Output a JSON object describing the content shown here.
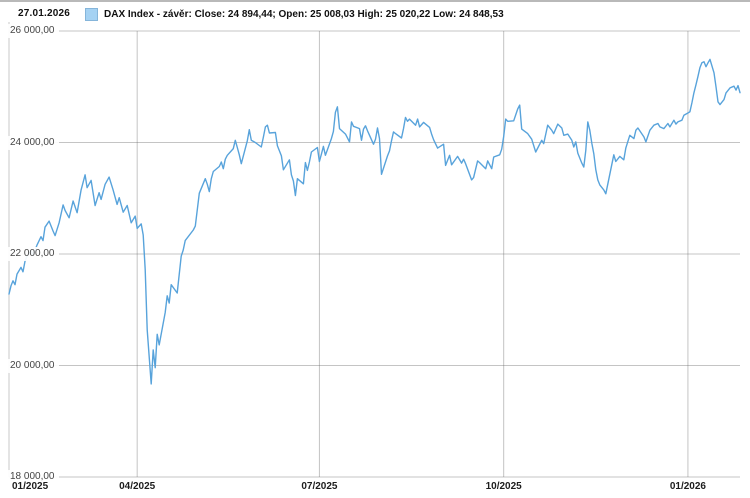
{
  "header": {
    "date_label": "27.01.2026",
    "legend": {
      "swatch_color": "#a5d2f3",
      "label": "DAX Index - závěr: Close: 24 894,44; Open: 25 008,03 High: 25 020,22 Low: 24 848,53"
    }
  },
  "chart_data": {
    "type": "area",
    "title": "DAX Index - závěr",
    "legend_position": "top",
    "grid": true,
    "xlabel": "",
    "ylabel": "",
    "x_unit": "days since 2025-01-27",
    "xlim": [
      0,
      365
    ],
    "ylim": [
      18000,
      26000
    ],
    "last_quote": {
      "date": "27.01.2026",
      "close": "24 894,44",
      "open": "25 008,03",
      "high": "25 020,22",
      "low": "24 848,53"
    },
    "y_ticks": [
      {
        "label": "26 000,00",
        "value": 26000
      },
      {
        "label": "24 000,00",
        "value": 24000
      },
      {
        "label": "22 000,00",
        "value": 22000
      },
      {
        "label": "20 000,00",
        "value": 20000
      },
      {
        "label": "18 000,00",
        "value": 18000
      }
    ],
    "x_ticks": [
      {
        "label": "01/2025",
        "day": 0,
        "align": "left",
        "gridline": false
      },
      {
        "label": "04/2025",
        "day": 64,
        "gridline": true
      },
      {
        "label": "07/2025",
        "day": 155,
        "gridline": true
      },
      {
        "label": "10/2025",
        "day": 247,
        "gridline": true
      },
      {
        "label": "01/2026",
        "day": 339,
        "gridline": true
      }
    ],
    "colors": {
      "fill": "#9ccef2",
      "line": "#58a3db",
      "grid": "rgba(100,100,100,0.38)",
      "axis": "#c9c9c9"
    },
    "series": [
      {
        "name": "DAX Index",
        "points": [
          [
            0,
            21280
          ],
          [
            1,
            21430
          ],
          [
            2,
            21520
          ],
          [
            3,
            21450
          ],
          [
            4,
            21640
          ],
          [
            6,
            21760
          ],
          [
            7,
            21680
          ],
          [
            8,
            21870
          ],
          [
            9,
            21960
          ],
          [
            11,
            22060
          ],
          [
            12,
            21980
          ],
          [
            14,
            22160
          ],
          [
            16,
            22310
          ],
          [
            17,
            22240
          ],
          [
            18,
            22480
          ],
          [
            20,
            22590
          ],
          [
            22,
            22410
          ],
          [
            23,
            22330
          ],
          [
            25,
            22560
          ],
          [
            27,
            22880
          ],
          [
            28,
            22780
          ],
          [
            30,
            22650
          ],
          [
            32,
            22950
          ],
          [
            34,
            22740
          ],
          [
            36,
            23150
          ],
          [
            38,
            23420
          ],
          [
            39,
            23190
          ],
          [
            41,
            23320
          ],
          [
            43,
            22870
          ],
          [
            45,
            23100
          ],
          [
            46,
            22980
          ],
          [
            48,
            23250
          ],
          [
            50,
            23380
          ],
          [
            52,
            23150
          ],
          [
            54,
            22890
          ],
          [
            55,
            23010
          ],
          [
            57,
            22750
          ],
          [
            59,
            22870
          ],
          [
            61,
            22560
          ],
          [
            63,
            22680
          ],
          [
            64,
            22460
          ],
          [
            66,
            22540
          ],
          [
            67,
            22340
          ],
          [
            68,
            21720
          ],
          [
            69,
            20640
          ],
          [
            71,
            19670
          ],
          [
            72,
            20280
          ],
          [
            73,
            19960
          ],
          [
            74,
            20560
          ],
          [
            75,
            20370
          ],
          [
            78,
            20950
          ],
          [
            79,
            21250
          ],
          [
            80,
            21120
          ],
          [
            81,
            21450
          ],
          [
            84,
            21300
          ],
          [
            86,
            21960
          ],
          [
            87,
            22070
          ],
          [
            88,
            22240
          ],
          [
            92,
            22430
          ],
          [
            93,
            22500
          ],
          [
            95,
            23090
          ],
          [
            98,
            23350
          ],
          [
            99,
            23250
          ],
          [
            100,
            23120
          ],
          [
            101,
            23350
          ],
          [
            102,
            23480
          ],
          [
            105,
            23570
          ],
          [
            106,
            23650
          ],
          [
            107,
            23530
          ],
          [
            108,
            23700
          ],
          [
            109,
            23770
          ],
          [
            112,
            23890
          ],
          [
            113,
            24040
          ],
          [
            114,
            23910
          ],
          [
            115,
            23780
          ],
          [
            116,
            23620
          ],
          [
            119,
            24030
          ],
          [
            120,
            24230
          ],
          [
            121,
            24040
          ],
          [
            123,
            24000
          ],
          [
            126,
            23920
          ],
          [
            127,
            24090
          ],
          [
            128,
            24280
          ],
          [
            129,
            24310
          ],
          [
            130,
            24170
          ],
          [
            133,
            24180
          ],
          [
            134,
            23940
          ],
          [
            136,
            23760
          ],
          [
            137,
            23510
          ],
          [
            140,
            23690
          ],
          [
            141,
            23420
          ],
          [
            142,
            23310
          ],
          [
            143,
            23050
          ],
          [
            144,
            23350
          ],
          [
            147,
            23260
          ],
          [
            148,
            23640
          ],
          [
            149,
            23500
          ],
          [
            150,
            23650
          ],
          [
            151,
            23830
          ],
          [
            154,
            23910
          ],
          [
            155,
            23660
          ],
          [
            156,
            23790
          ],
          [
            157,
            23930
          ],
          [
            158,
            23770
          ],
          [
            161,
            24070
          ],
          [
            162,
            24200
          ],
          [
            163,
            24540
          ],
          [
            164,
            24640
          ],
          [
            165,
            24250
          ],
          [
            168,
            24150
          ],
          [
            170,
            24010
          ],
          [
            171,
            24370
          ],
          [
            172,
            24290
          ],
          [
            175,
            24250
          ],
          [
            176,
            24040
          ],
          [
            177,
            24240
          ],
          [
            178,
            24300
          ],
          [
            179,
            24210
          ],
          [
            182,
            23970
          ],
          [
            183,
            24060
          ],
          [
            184,
            24260
          ],
          [
            185,
            24070
          ],
          [
            186,
            23430
          ],
          [
            189,
            23760
          ],
          [
            190,
            23850
          ],
          [
            191,
            24030
          ],
          [
            192,
            24190
          ],
          [
            193,
            24160
          ],
          [
            196,
            24080
          ],
          [
            197,
            24250
          ],
          [
            198,
            24450
          ],
          [
            199,
            24380
          ],
          [
            200,
            24420
          ],
          [
            203,
            24310
          ],
          [
            204,
            24420
          ],
          [
            205,
            24280
          ],
          [
            207,
            24360
          ],
          [
            210,
            24270
          ],
          [
            211,
            24150
          ],
          [
            212,
            24050
          ],
          [
            214,
            23900
          ],
          [
            217,
            23970
          ],
          [
            218,
            23590
          ],
          [
            219,
            23680
          ],
          [
            220,
            23770
          ],
          [
            221,
            23600
          ],
          [
            224,
            23750
          ],
          [
            226,
            23630
          ],
          [
            227,
            23700
          ],
          [
            228,
            23620
          ],
          [
            231,
            23330
          ],
          [
            232,
            23370
          ],
          [
            234,
            23670
          ],
          [
            235,
            23640
          ],
          [
            238,
            23530
          ],
          [
            239,
            23670
          ],
          [
            241,
            23530
          ],
          [
            242,
            23740
          ],
          [
            245,
            23780
          ],
          [
            246,
            23880
          ],
          [
            247,
            24110
          ],
          [
            248,
            24420
          ],
          [
            249,
            24380
          ],
          [
            252,
            24390
          ],
          [
            254,
            24600
          ],
          [
            255,
            24670
          ],
          [
            256,
            24240
          ],
          [
            259,
            24160
          ],
          [
            261,
            24060
          ],
          [
            263,
            23830
          ],
          [
            266,
            24040
          ],
          [
            267,
            23980
          ],
          [
            269,
            24310
          ],
          [
            271,
            24220
          ],
          [
            272,
            24160
          ],
          [
            274,
            24330
          ],
          [
            276,
            24260
          ],
          [
            277,
            24130
          ],
          [
            279,
            24150
          ],
          [
            281,
            24040
          ],
          [
            282,
            23920
          ],
          [
            283,
            24010
          ],
          [
            284,
            23810
          ],
          [
            286,
            23630
          ],
          [
            287,
            23560
          ],
          [
            288,
            23860
          ],
          [
            289,
            24370
          ],
          [
            290,
            24220
          ],
          [
            291,
            23990
          ],
          [
            292,
            23800
          ],
          [
            293,
            23510
          ],
          [
            294,
            23330
          ],
          [
            295,
            23240
          ],
          [
            297,
            23150
          ],
          [
            298,
            23080
          ],
          [
            300,
            23430
          ],
          [
            302,
            23780
          ],
          [
            303,
            23660
          ],
          [
            305,
            23750
          ],
          [
            307,
            23690
          ],
          [
            308,
            23900
          ],
          [
            310,
            24130
          ],
          [
            312,
            24070
          ],
          [
            313,
            24220
          ],
          [
            314,
            24260
          ],
          [
            317,
            24100
          ],
          [
            318,
            24010
          ],
          [
            320,
            24220
          ],
          [
            322,
            24310
          ],
          [
            324,
            24340
          ],
          [
            325,
            24280
          ],
          [
            327,
            24250
          ],
          [
            329,
            24340
          ],
          [
            330,
            24280
          ],
          [
            332,
            24400
          ],
          [
            333,
            24330
          ],
          [
            334,
            24370
          ],
          [
            336,
            24400
          ],
          [
            337,
            24490
          ],
          [
            339,
            24530
          ],
          [
            340,
            24550
          ],
          [
            341,
            24710
          ],
          [
            342,
            24890
          ],
          [
            343,
            25030
          ],
          [
            344,
            25180
          ],
          [
            345,
            25340
          ],
          [
            346,
            25430
          ],
          [
            347,
            25450
          ],
          [
            348,
            25360
          ],
          [
            349,
            25430
          ],
          [
            350,
            25490
          ],
          [
            352,
            25250
          ],
          [
            353,
            25000
          ],
          [
            354,
            24730
          ],
          [
            355,
            24680
          ],
          [
            357,
            24770
          ],
          [
            358,
            24890
          ],
          [
            360,
            24980
          ],
          [
            362,
            25010
          ],
          [
            363,
            24940
          ],
          [
            364,
            25020
          ],
          [
            365,
            24894
          ]
        ]
      }
    ]
  }
}
